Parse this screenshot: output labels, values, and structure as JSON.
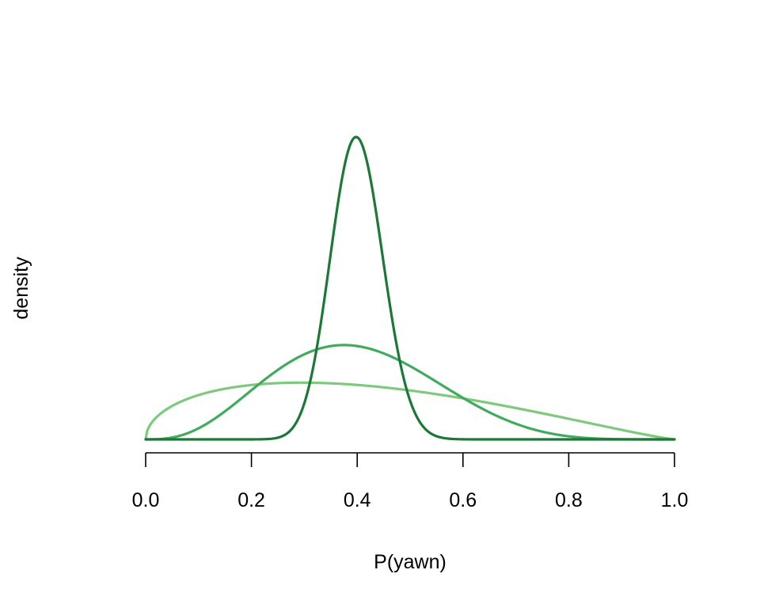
{
  "chart_data": {
    "type": "line",
    "xlabel": "P(yawn)",
    "ylabel": "density",
    "xlim": [
      0,
      1
    ],
    "x_ticks": [
      "0.0",
      "0.2",
      "0.4",
      "0.6",
      "0.8",
      "1.0"
    ],
    "y_axis_drawn": false,
    "grid": false,
    "legend": "none",
    "series": [
      {
        "color": "#7fc97f",
        "distribution": "beta",
        "alpha": 1.5,
        "beta": 2.2,
        "x": [
          0,
          0.05,
          0.1,
          0.15,
          0.2,
          0.25,
          0.3,
          0.35,
          0.4,
          0.45,
          0.5,
          0.55,
          0.6,
          0.65,
          0.7,
          0.75,
          0.8,
          0.85,
          0.9,
          0.95,
          1.0
        ],
        "y": [
          0.0,
          0.77,
          1.01,
          1.15,
          1.23,
          1.27,
          1.28,
          1.26,
          1.22,
          1.17,
          1.1,
          1.02,
          0.92,
          0.82,
          0.7,
          0.58,
          0.45,
          0.32,
          0.19,
          0.08,
          0.0
        ]
      },
      {
        "color": "#41ab5d",
        "distribution": "beta",
        "alpha": 4,
        "beta": 6,
        "x": [
          0,
          0.05,
          0.1,
          0.15,
          0.2,
          0.25,
          0.3,
          0.35,
          0.4,
          0.45,
          0.5,
          0.55,
          0.6,
          0.65,
          0.7,
          0.75,
          0.8,
          0.85,
          0.9,
          0.95,
          1.0
        ],
        "y": [
          0.0,
          0.07,
          0.45,
          1.09,
          1.76,
          2.25,
          2.54,
          2.56,
          2.32,
          1.89,
          1.41,
          0.96,
          0.59,
          0.33,
          0.16,
          0.07,
          0.02,
          0.005,
          0.001,
          0.0,
          0.0
        ]
      },
      {
        "color": "#1b7837",
        "distribution": "beta",
        "alpha": 40,
        "beta": 60,
        "x": [
          0,
          0.05,
          0.1,
          0.15,
          0.2,
          0.25,
          0.3,
          0.35,
          0.4,
          0.45,
          0.5,
          0.55,
          0.6,
          0.65,
          0.7,
          0.75,
          0.8,
          0.85,
          0.9,
          0.95,
          1.0
        ],
        "y": [
          0.0,
          0.0,
          0.0,
          0.0,
          0.01,
          0.09,
          1.11,
          5.01,
          8.09,
          5.05,
          1.26,
          0.11,
          0.003,
          0.0,
          0.0,
          0.0,
          0.0,
          0.0,
          0.0,
          0.0,
          0.0
        ]
      }
    ]
  }
}
